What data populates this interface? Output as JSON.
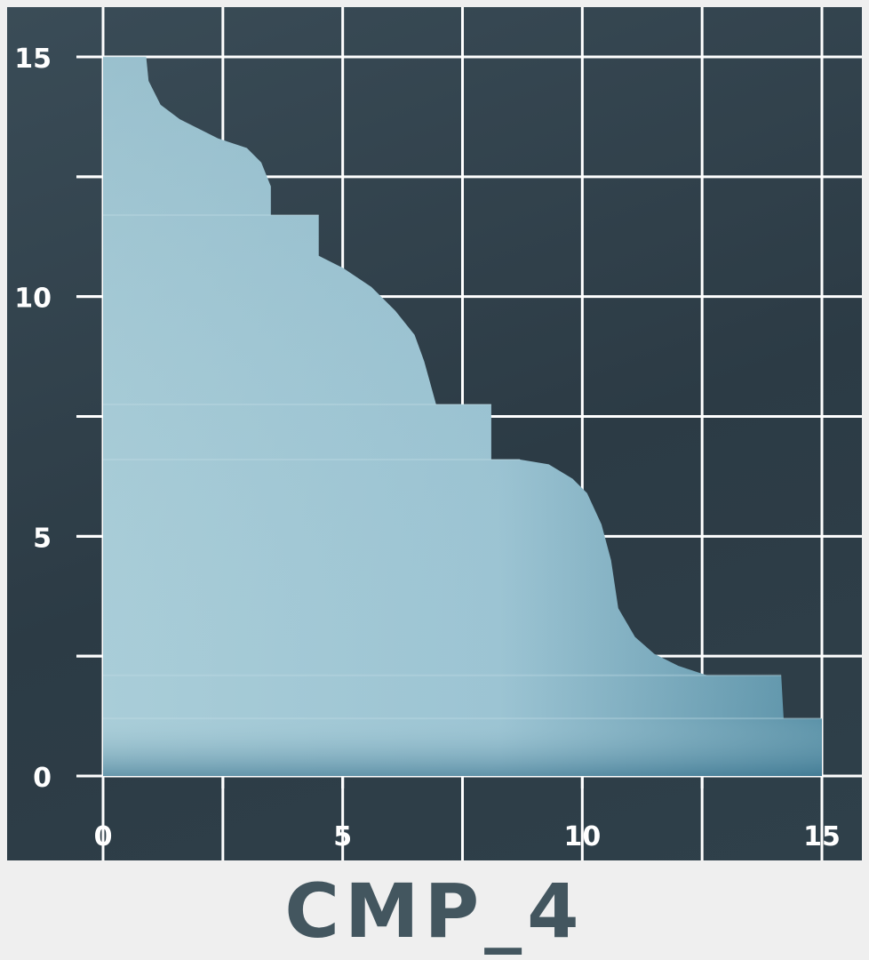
{
  "chart_data": {
    "type": "area",
    "title": "CMP_4",
    "xlabel": "",
    "ylabel": "",
    "xlim": [
      0,
      15
    ],
    "ylim": [
      0,
      15
    ],
    "x_ticks": [
      0,
      5,
      10,
      15
    ],
    "y_ticks": [
      0,
      5,
      10,
      15
    ],
    "x_tick_labels": [
      "0",
      "5",
      "10",
      "15"
    ],
    "y_tick_labels": [
      "0",
      "5",
      "10",
      "15"
    ],
    "grid": true,
    "grid_step": 2.5,
    "colors": {
      "background": "#33434d",
      "grid": "#ffffff",
      "fill_light": "#a9cdd8",
      "fill_dark": "#5b92a8",
      "title": "#43565f"
    },
    "boundary": [
      [
        0,
        15
      ],
      [
        0.9,
        15
      ],
      [
        0.95,
        14.5
      ],
      [
        1.2,
        14.0
      ],
      [
        1.6,
        13.7
      ],
      [
        2.4,
        13.3
      ],
      [
        3.0,
        13.1
      ],
      [
        3.3,
        12.8
      ],
      [
        3.5,
        12.3
      ],
      [
        3.5,
        11.7
      ],
      [
        4.5,
        11.7
      ],
      [
        4.5,
        10.85
      ],
      [
        5.0,
        10.6
      ],
      [
        5.6,
        10.2
      ],
      [
        6.1,
        9.7
      ],
      [
        6.5,
        9.2
      ],
      [
        6.7,
        8.65
      ],
      [
        6.95,
        7.75
      ],
      [
        8.1,
        7.75
      ],
      [
        8.1,
        6.6
      ],
      [
        8.7,
        6.6
      ],
      [
        9.3,
        6.5
      ],
      [
        9.8,
        6.2
      ],
      [
        10.1,
        5.9
      ],
      [
        10.4,
        5.25
      ],
      [
        10.6,
        4.5
      ],
      [
        10.75,
        3.5
      ],
      [
        11.1,
        2.9
      ],
      [
        11.5,
        2.55
      ],
      [
        12.0,
        2.3
      ],
      [
        12.6,
        2.1
      ],
      [
        14.15,
        2.1
      ],
      [
        14.2,
        1.2
      ],
      [
        15.0,
        1.2
      ],
      [
        15.0,
        0
      ]
    ]
  }
}
